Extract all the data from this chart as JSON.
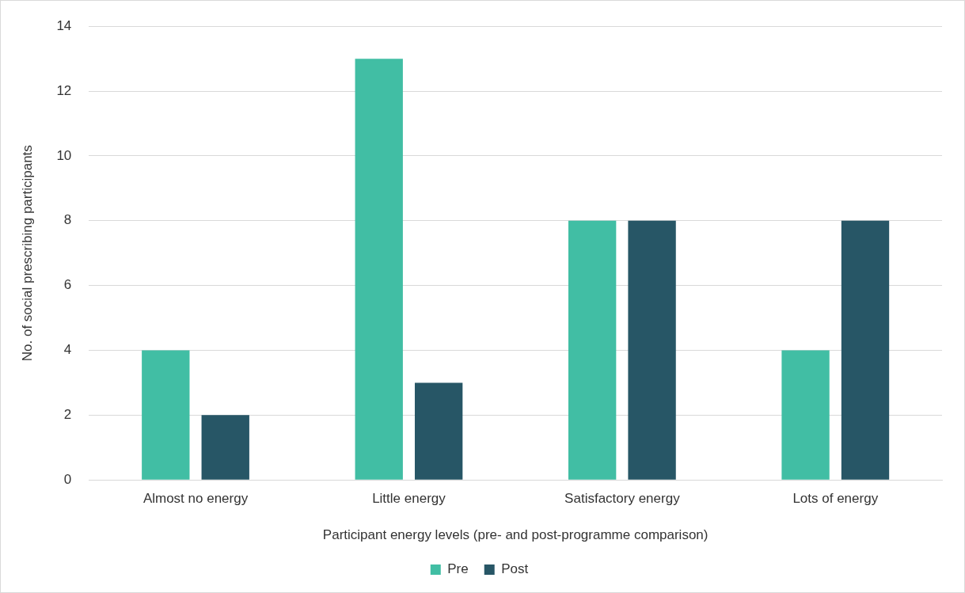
{
  "chart_data": {
    "type": "bar",
    "categories": [
      "Almost no energy",
      "Little energy",
      "Satisfactory energy",
      "Lots of energy"
    ],
    "series": [
      {
        "name": "Pre",
        "color": "#41bea4",
        "values": [
          4,
          13,
          8,
          4
        ]
      },
      {
        "name": "Post",
        "color": "#275666",
        "values": [
          2,
          3,
          8,
          8
        ]
      }
    ],
    "xlabel": "Participant energy levels (pre- and post-programme comparison)",
    "ylabel": "No. of social prescribing participants",
    "ylim": [
      0,
      14
    ],
    "yticks": [
      0,
      2,
      4,
      6,
      8,
      10,
      12,
      14
    ],
    "grid": "y",
    "legend": "bottom"
  }
}
